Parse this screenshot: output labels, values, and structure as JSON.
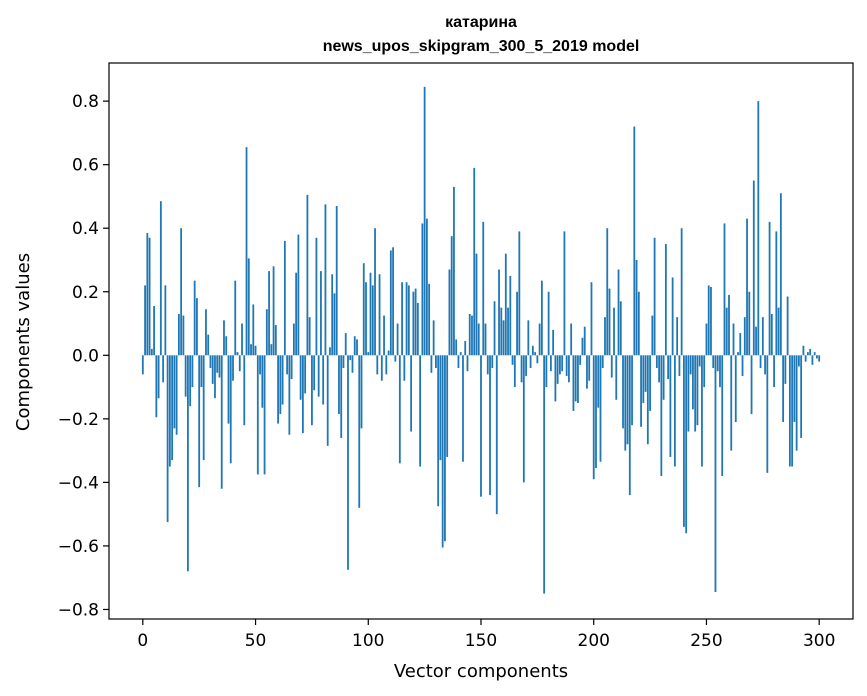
{
  "chart_data": {
    "type": "bar",
    "title": "катарина",
    "subtitle": "news_upos_skipgram_300_5_2019 model",
    "xlabel": "Vector components",
    "ylabel": "Components values",
    "xlim": [
      -15,
      315
    ],
    "ylim": [
      -0.83,
      0.92
    ],
    "xticks": [
      0,
      50,
      100,
      150,
      200,
      250,
      300
    ],
    "xtick_labels": [
      "0",
      "50",
      "100",
      "150",
      "200",
      "250",
      "300"
    ],
    "yticks": [
      0.8,
      0.6,
      0.4,
      0.2,
      0.0,
      -0.2,
      -0.4,
      -0.6,
      -0.8
    ],
    "ytick_labels": [
      "0.8",
      "0.6",
      "0.4",
      "0.2",
      "0.0",
      "−0.2",
      "−0.4",
      "−0.6",
      "−0.8"
    ],
    "bar_color": "#1f77b4",
    "grid": false,
    "values": [
      -0.06,
      0.22,
      0.385,
      0.37,
      0.02,
      0.155,
      -0.195,
      -0.135,
      0.485,
      -0.085,
      0.22,
      -0.525,
      -0.35,
      -0.33,
      -0.23,
      -0.25,
      0.13,
      0.4,
      0.125,
      -0.13,
      -0.68,
      -0.16,
      -0.1,
      0.235,
      0.18,
      -0.415,
      -0.1,
      -0.33,
      0.145,
      0.065,
      -0.04,
      -0.09,
      -0.135,
      -0.055,
      -0.07,
      -0.42,
      0.11,
      0.06,
      -0.215,
      -0.34,
      -0.08,
      0.235,
      0.01,
      -0.05,
      0.1,
      -0.22,
      0.655,
      0.305,
      0.035,
      0.16,
      0.03,
      -0.375,
      -0.06,
      -0.165,
      -0.375,
      0.145,
      0.265,
      0.035,
      0.28,
      0.095,
      -0.215,
      -0.185,
      -0.155,
      0.36,
      -0.06,
      -0.25,
      -0.075,
      0.1,
      0.26,
      0.38,
      -0.14,
      -0.245,
      -0.12,
      0.505,
      0.12,
      -0.22,
      -0.11,
      0.37,
      -0.13,
      0.265,
      -0.155,
      0.475,
      -0.285,
      0.025,
      0.255,
      0.195,
      0.47,
      -0.185,
      -0.26,
      -0.04,
      0.07,
      -0.675,
      -0.015,
      -0.055,
      0.06,
      0.05,
      -0.48,
      -0.23,
      0.29,
      0.23,
      0.01,
      0.26,
      0.22,
      0.4,
      -0.06,
      0.255,
      -0.08,
      0.125,
      -0.06,
      0.015,
      0.33,
      0.34,
      -0.02,
      0.1,
      -0.34,
      0.23,
      -0.08,
      0.23,
      0.22,
      -0.24,
      0.2,
      0.21,
      0.165,
      -0.35,
      0.415,
      0.845,
      0.43,
      0.225,
      -0.055,
      0.11,
      -0.04,
      -0.475,
      -0.33,
      -0.605,
      -0.585,
      -0.32,
      0.27,
      0.375,
      0.53,
      0.05,
      -0.04,
      0.01,
      -0.335,
      0.045,
      -0.05,
      0.13,
      0.125,
      0.59,
      0.32,
      0.1,
      -0.445,
      0.42,
      0.1,
      -0.06,
      -0.44,
      -0.04,
      0.17,
      -0.5,
      0.27,
      0.15,
      0.11,
      0.32,
      0.15,
      0.25,
      -0.03,
      -0.1,
      0.2,
      0.39,
      -0.085,
      -0.4,
      -0.065,
      0.11,
      -0.04,
      0.03,
      0.01,
      -0.025,
      0.1,
      0.235,
      -0.75,
      -0.1,
      0.2,
      -0.05,
      0.08,
      -0.145,
      -0.09,
      -0.06,
      -0.05,
      0.39,
      -0.065,
      -0.085,
      0.1,
      -0.175,
      -0.145,
      -0.15,
      -0.03,
      0.055,
      0.09,
      -0.105,
      -0.08,
      0.23,
      -0.39,
      -0.355,
      -0.165,
      -0.335,
      -0.04,
      0.12,
      0.4,
      0.21,
      -0.07,
      0.15,
      -0.14,
      0.27,
      0.17,
      -0.23,
      -0.3,
      -0.28,
      -0.44,
      -0.22,
      0.72,
      0.3,
      0.2,
      -0.225,
      -0.15,
      -0.115,
      -0.28,
      -0.175,
      0.125,
      0.37,
      -0.04,
      -0.085,
      -0.38,
      -0.14,
      0.35,
      -0.075,
      -0.32,
      0.245,
      -0.35,
      0.12,
      -0.065,
      0.4,
      -0.54,
      -0.56,
      -0.24,
      -0.06,
      -0.17,
      -0.24,
      -0.22,
      -0.035,
      -0.35,
      -0.1,
      0.1,
      0.22,
      0.215,
      -0.04,
      -0.745,
      -0.05,
      -0.1,
      -0.38,
      0.415,
      0.15,
      0.19,
      -0.3,
      0.1,
      -0.21,
      0.01,
      0.07,
      -0.065,
      0.12,
      0.43,
      0.2,
      -0.185,
      0.55,
      0.09,
      0.8,
      -0.04,
      0.12,
      -0.06,
      -0.37,
      0.42,
      0.13,
      -0.1,
      0.39,
      0.15,
      0.51,
      -0.21,
      -0.09,
      0.185,
      -0.35,
      -0.35,
      -0.21,
      -0.3,
      -0.035,
      -0.26,
      0.03,
      -0.02,
      0.01,
      0.02,
      -0.03,
      0.01,
      -0.01,
      -0.02
    ]
  }
}
